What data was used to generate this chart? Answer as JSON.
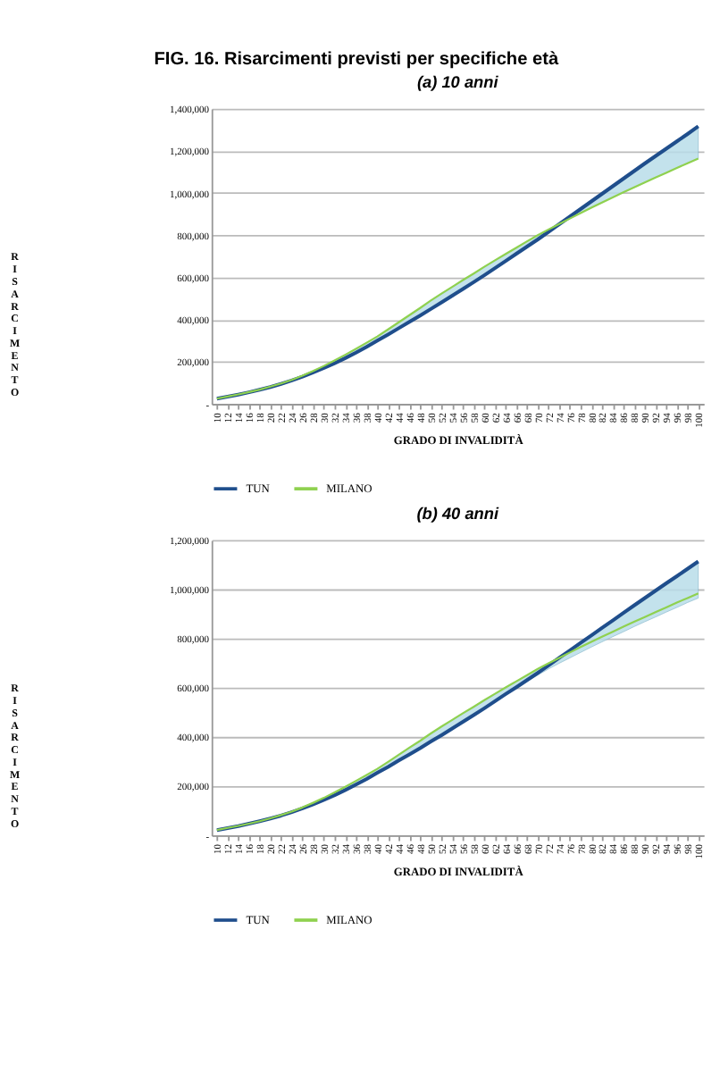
{
  "chart_data": [
    {
      "type": "line",
      "title": "FIG. 16. Risarcimenti previsti per specifiche età",
      "subtitle": "(a) 10 anni",
      "xlabel": "GRADO DI INVALIDITÀ",
      "ylabel": "RISARCIMENTO",
      "categories": [
        "10",
        "12",
        "14",
        "16",
        "18",
        "20",
        "22",
        "24",
        "26",
        "28",
        "30",
        "32",
        "34",
        "36",
        "38",
        "40",
        "42",
        "44",
        "46",
        "48",
        "50",
        "52",
        "54",
        "56",
        "58",
        "60",
        "62",
        "64",
        "66",
        "68",
        "70",
        "72",
        "74",
        "76",
        "78",
        "80",
        "82",
        "84",
        "86",
        "88",
        "90",
        "92",
        "94",
        "96",
        "98",
        "100"
      ],
      "series": [
        {
          "name": "TUN",
          "color": "#1f4e8c",
          "values": [
            25000,
            34000,
            44000,
            55000,
            67000,
            80000,
            95000,
            111000,
            129000,
            149000,
            170000,
            193000,
            217000,
            243000,
            271000,
            300000,
            329000,
            359000,
            389000,
            419000,
            450000,
            481000,
            513000,
            545000,
            577000,
            610000,
            644000,
            678000,
            712000,
            746000,
            780000,
            816000,
            852000,
            888000,
            924000,
            960000,
            996000,
            1032000,
            1068000,
            1104000,
            1140000,
            1175000,
            1210000,
            1245000,
            1280000,
            1316000
          ],
          "lower": [
            25000,
            34000,
            44000,
            55000,
            67000,
            80000,
            95000,
            111000,
            129000,
            149000,
            170000,
            193000,
            217000,
            243000,
            271000,
            300000,
            329000,
            359000,
            389000,
            419000,
            450000,
            481000,
            513000,
            545000,
            577000,
            610000,
            644000,
            678000,
            712000,
            746000,
            780000,
            816000,
            852000,
            879000,
            905000,
            930000,
            955000,
            979000,
            1003000,
            1027000,
            1050000,
            1073000,
            1096000,
            1119000,
            1141000,
            1163000
          ],
          "upper": [
            25000,
            35000,
            45000,
            56000,
            68000,
            82000,
            97000,
            114000,
            134000,
            156000,
            180000,
            206000,
            233000,
            261000,
            290000,
            320000,
            353000,
            387000,
            421000,
            455000,
            490000,
            523000,
            555000,
            587000,
            618000,
            650000,
            681000,
            711000,
            741000,
            771000,
            800000,
            827000,
            853000,
            888000,
            924000,
            960000,
            996000,
            1032000,
            1068000,
            1104000,
            1140000,
            1175000,
            1210000,
            1245000,
            1280000,
            1316000
          ]
        },
        {
          "name": "MILANO",
          "color": "#8fd14f",
          "values": [
            25000,
            35000,
            45000,
            56000,
            68000,
            82000,
            97000,
            114000,
            134000,
            156000,
            180000,
            206000,
            233000,
            261000,
            290000,
            320000,
            353000,
            387000,
            421000,
            455000,
            490000,
            523000,
            555000,
            587000,
            618000,
            650000,
            681000,
            711000,
            741000,
            771000,
            800000,
            827000,
            853000,
            879000,
            905000,
            930000,
            955000,
            979000,
            1003000,
            1027000,
            1050000,
            1073000,
            1096000,
            1119000,
            1141000,
            1163000
          ]
        }
      ],
      "ylim": [
        0,
        1400000
      ],
      "yticks": [
        {
          "value": 0,
          "label": "-"
        },
        {
          "value": 200000,
          "label": "200,000"
        },
        {
          "value": 400000,
          "label": "400,000"
        },
        {
          "value": 600000,
          "label": "600,000"
        },
        {
          "value": 800000,
          "label": "800,000"
        },
        {
          "value": 1000000,
          "label": "1,000,000"
        },
        {
          "value": 1200000,
          "label": "1,200,000"
        },
        {
          "value": 1400000,
          "label": "1,400,000"
        }
      ],
      "grid": "y",
      "legend": "bottom",
      "marker": "none",
      "line_style": "solid"
    },
    {
      "type": "line",
      "subtitle": "(b) 40 anni",
      "xlabel": "GRADO DI INVALIDITÀ",
      "ylabel": "RISARCIMENTO",
      "categories": [
        "10",
        "12",
        "14",
        "16",
        "18",
        "20",
        "22",
        "24",
        "26",
        "28",
        "30",
        "32",
        "34",
        "36",
        "38",
        "40",
        "42",
        "44",
        "46",
        "48",
        "50",
        "52",
        "54",
        "56",
        "58",
        "60",
        "62",
        "64",
        "66",
        "68",
        "70",
        "72",
        "74",
        "76",
        "78",
        "80",
        "82",
        "84",
        "86",
        "88",
        "90",
        "92",
        "94",
        "96",
        "98",
        "100"
      ],
      "series": [
        {
          "name": "TUN",
          "color": "#1f4e8c",
          "values": [
            21000,
            29000,
            37000,
            47000,
            57000,
            68000,
            80000,
            94000,
            109000,
            126000,
            144000,
            163000,
            184000,
            206000,
            229000,
            254000,
            278000,
            304000,
            329000,
            354000,
            381000,
            407000,
            434000,
            461000,
            488000,
            516000,
            545000,
            574000,
            602000,
            631000,
            660000,
            690000,
            721000,
            751000,
            782000,
            812000,
            843000,
            873000,
            904000,
            934000,
            964000,
            994000,
            1024000,
            1053000,
            1083000,
            1113000
          ],
          "lower": [
            21000,
            29000,
            37000,
            47000,
            57000,
            68000,
            80000,
            94000,
            109000,
            126000,
            144000,
            163000,
            184000,
            206000,
            229000,
            254000,
            278000,
            304000,
            329000,
            354000,
            381000,
            407000,
            434000,
            461000,
            488000,
            516000,
            545000,
            574000,
            601000,
            626000,
            651000,
            676000,
            699000,
            721000,
            743000,
            765000,
            786000,
            807000,
            827000,
            848000,
            868000,
            887000,
            907000,
            926000,
            946000,
            964000
          ],
          "upper": [
            21000,
            30000,
            38000,
            47000,
            57000,
            69000,
            82000,
            96000,
            113000,
            132000,
            152000,
            174000,
            197000,
            221000,
            245000,
            270000,
            298000,
            327000,
            356000,
            384000,
            414000,
            442000,
            469000,
            496000,
            522000,
            549000,
            575000,
            601000,
            626000,
            651000,
            676000,
            699000,
            721000,
            751000,
            782000,
            812000,
            843000,
            873000,
            904000,
            934000,
            964000,
            994000,
            1024000,
            1053000,
            1083000,
            1113000
          ]
        },
        {
          "name": "MILANO",
          "color": "#8fd14f",
          "values": [
            21000,
            30000,
            38000,
            47000,
            57000,
            69000,
            82000,
            96000,
            113000,
            132000,
            152000,
            174000,
            197000,
            221000,
            245000,
            270000,
            298000,
            327000,
            356000,
            384000,
            414000,
            442000,
            469000,
            496000,
            522000,
            549000,
            575000,
            601000,
            626000,
            651000,
            676000,
            699000,
            721000,
            743000,
            765000,
            786000,
            807000,
            827000,
            848000,
            868000,
            887000,
            907000,
            926000,
            946000,
            964000,
            983000
          ]
        }
      ],
      "ylim": [
        0,
        1200000
      ],
      "yticks": [
        {
          "value": 0,
          "label": "-"
        },
        {
          "value": 200000,
          "label": "200,000"
        },
        {
          "value": 400000,
          "label": "400,000"
        },
        {
          "value": 600000,
          "label": "600,000"
        },
        {
          "value": 800000,
          "label": "800,000"
        },
        {
          "value": 1000000,
          "label": "1,000,000"
        },
        {
          "value": 1200000,
          "label": "1,200,000"
        }
      ],
      "grid": "y",
      "legend": "bottom",
      "marker": "none",
      "line_style": "solid"
    }
  ]
}
